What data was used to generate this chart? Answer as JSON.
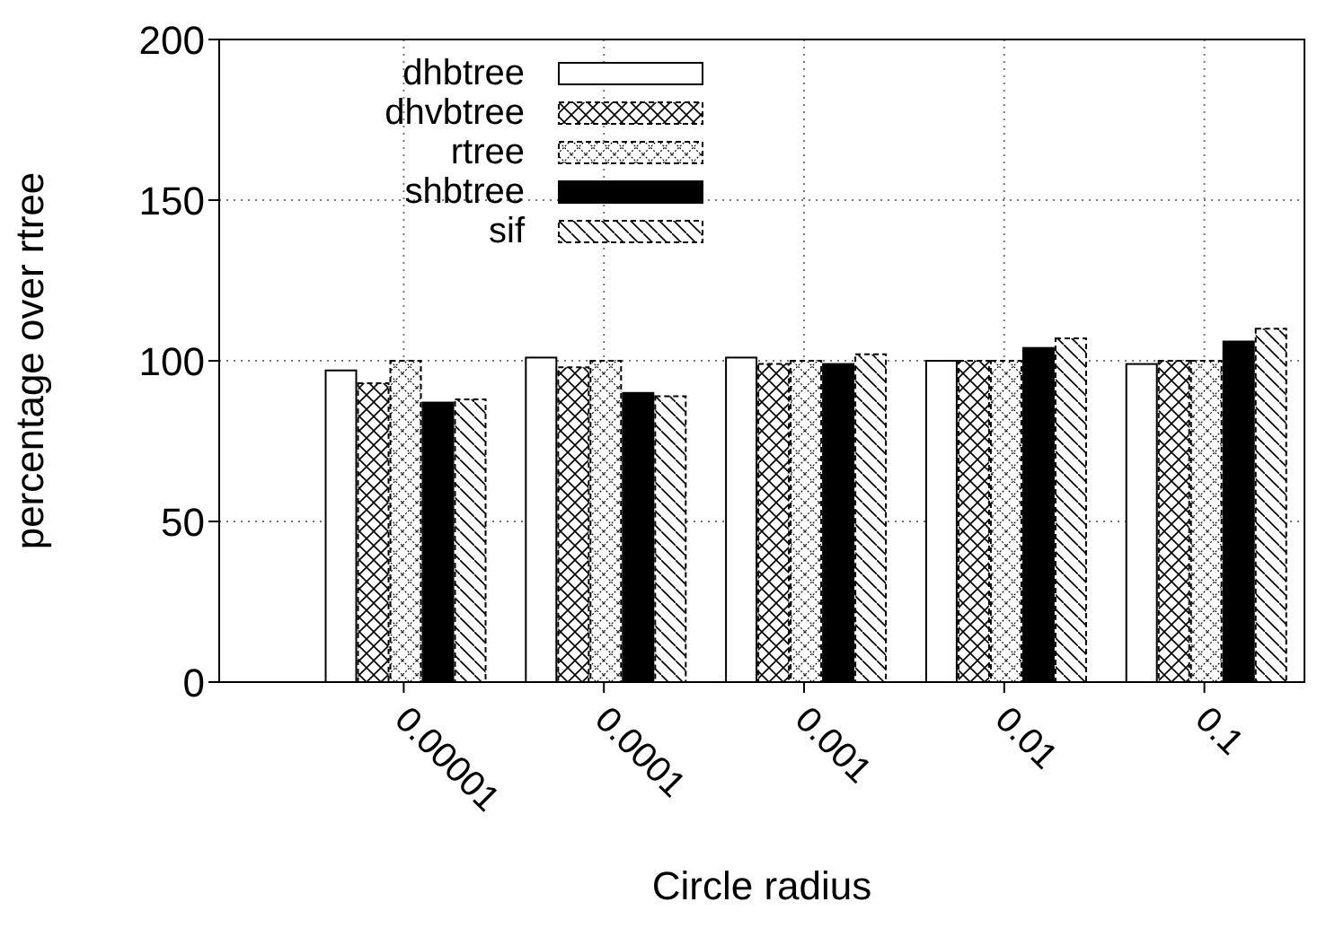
{
  "chart_data": {
    "type": "bar",
    "xlabel": "Circle radius",
    "ylabel": "percentage over rtree",
    "categories": [
      "0.00001",
      "0.0001",
      "0.001",
      "0.01",
      "0.1"
    ],
    "series": [
      {
        "name": "dhbtree",
        "color": "#ffffff",
        "values": [
          97,
          101,
          101,
          100,
          99
        ]
      },
      {
        "name": "dhvbtree",
        "color": "#ffffff",
        "values": [
          93,
          98,
          99,
          100,
          100
        ]
      },
      {
        "name": "rtree",
        "color": "#ffffff",
        "values": [
          100,
          100,
          100,
          100,
          100
        ]
      },
      {
        "name": "shbtree",
        "color": "#000000",
        "values": [
          87,
          90,
          99,
          104,
          106
        ]
      },
      {
        "name": "sif",
        "color": "#ffffff",
        "values": [
          88,
          89,
          102,
          107,
          110
        ]
      }
    ],
    "ylim": [
      0,
      200
    ],
    "yticks": [
      0,
      50,
      100,
      150,
      200
    ],
    "grid": true,
    "legend": "top left"
  }
}
